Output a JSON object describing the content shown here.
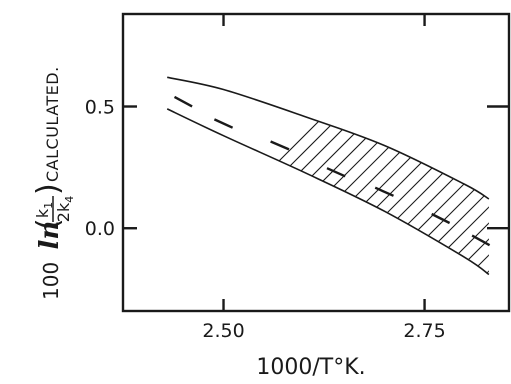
{
  "chart_data": {
    "type": "line",
    "title": "",
    "xlabel": "1000/T°K.",
    "ylabel_parts": {
      "prefix": "100",
      "ln": "ln",
      "numerator": "k",
      "numerator_sub": "1",
      "denominator": "2k",
      "denominator_sub": "4",
      "suffix": "CALCULATED."
    },
    "x_ticks": [
      {
        "value": 2.5,
        "label": "2.50"
      },
      {
        "value": 2.75,
        "label": "2.75"
      }
    ],
    "y_ticks": [
      {
        "value": 0.5,
        "label": "0.5"
      },
      {
        "value": 0.0,
        "label": "0.0"
      }
    ],
    "xlim": [
      2.375,
      2.855
    ],
    "ylim": [
      -0.34,
      0.88
    ],
    "grid": false,
    "series": [
      {
        "style": "hatched-band",
        "x": [
          2.43,
          2.5,
          2.6,
          2.7,
          2.8,
          2.83
        ],
        "upper": [
          0.62,
          0.57,
          0.46,
          0.34,
          0.18,
          0.12
        ],
        "lower": [
          0.49,
          0.38,
          0.23,
          0.07,
          -0.12,
          -0.19
        ]
      },
      {
        "style": "dash-centerline",
        "x": [
          2.45,
          2.5,
          2.57,
          2.64,
          2.7,
          2.77,
          2.82
        ],
        "y": [
          0.52,
          0.43,
          0.34,
          0.23,
          0.15,
          0.04,
          -0.05
        ]
      }
    ]
  }
}
